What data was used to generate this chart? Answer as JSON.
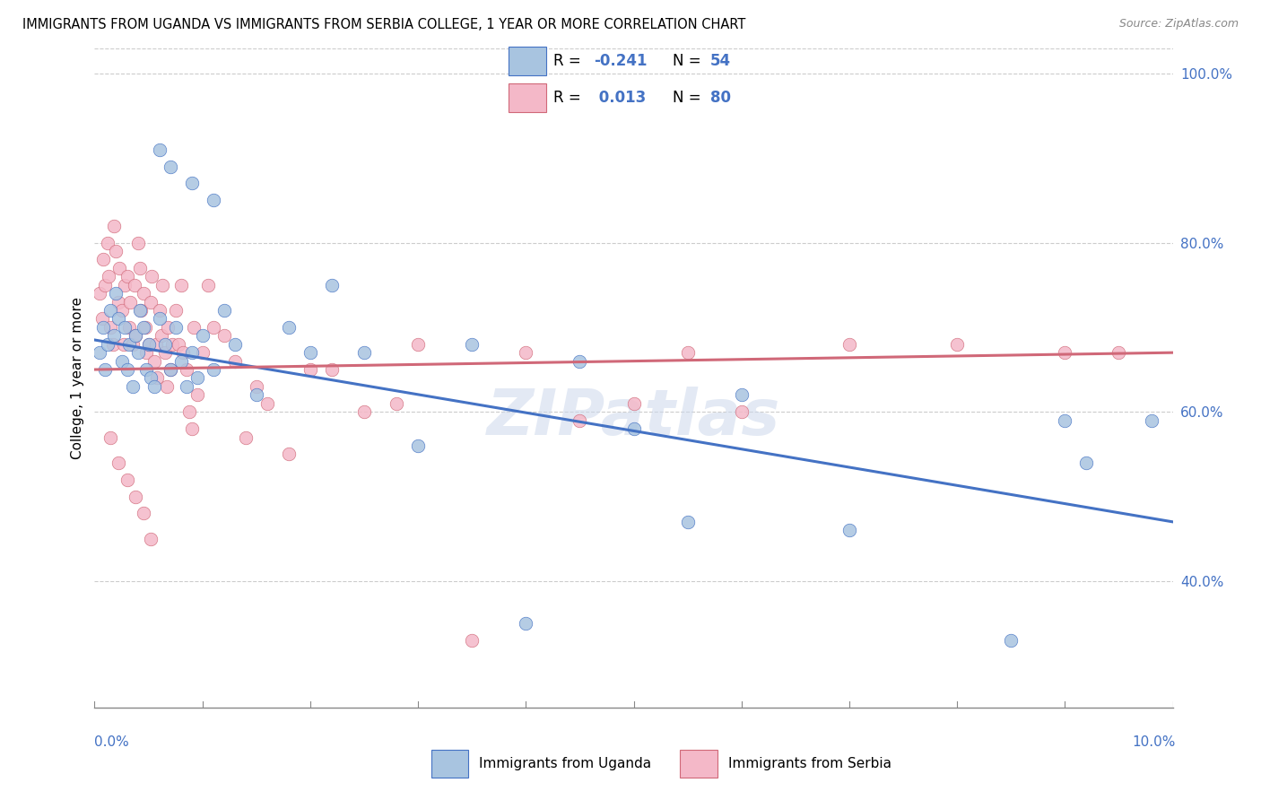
{
  "title": "IMMIGRANTS FROM UGANDA VS IMMIGRANTS FROM SERBIA COLLEGE, 1 YEAR OR MORE CORRELATION CHART",
  "source": "Source: ZipAtlas.com",
  "ylabel": "College, 1 year or more",
  "xlim": [
    0.0,
    10.0
  ],
  "ylim": [
    25.0,
    103.0
  ],
  "yticks": [
    40.0,
    60.0,
    80.0,
    100.0
  ],
  "ytick_labels": [
    "40.0%",
    "60.0%",
    "80.0%",
    "100.0%"
  ],
  "color_uganda_fill": "#a8c4e0",
  "color_uganda_edge": "#4472c4",
  "color_serbia_fill": "#f4b8c8",
  "color_serbia_edge": "#d06878",
  "color_uganda_line": "#4472c4",
  "color_serbia_line": "#d06878",
  "watermark": "ZIPatlas",
  "uganda_x": [
    0.05,
    0.08,
    0.1,
    0.12,
    0.15,
    0.18,
    0.2,
    0.22,
    0.25,
    0.28,
    0.3,
    0.32,
    0.35,
    0.38,
    0.4,
    0.42,
    0.45,
    0.48,
    0.5,
    0.52,
    0.55,
    0.6,
    0.65,
    0.7,
    0.75,
    0.8,
    0.85,
    0.9,
    0.95,
    1.0,
    1.1,
    1.2,
    1.3,
    1.5,
    1.8,
    2.0,
    2.2,
    2.5,
    3.0,
    3.5,
    4.0,
    4.5,
    5.0,
    5.5,
    6.0,
    7.0,
    8.5,
    9.0,
    9.2,
    9.8,
    0.6,
    0.7,
    0.9,
    1.1
  ],
  "uganda_y": [
    67,
    70,
    65,
    68,
    72,
    69,
    74,
    71,
    66,
    70,
    65,
    68,
    63,
    69,
    67,
    72,
    70,
    65,
    68,
    64,
    63,
    71,
    68,
    65,
    70,
    66,
    63,
    67,
    64,
    69,
    65,
    72,
    68,
    62,
    70,
    67,
    75,
    67,
    56,
    68,
    35,
    66,
    58,
    47,
    62,
    46,
    33,
    59,
    54,
    59,
    91,
    89,
    87,
    85
  ],
  "serbia_x": [
    0.05,
    0.07,
    0.08,
    0.1,
    0.12,
    0.13,
    0.15,
    0.17,
    0.18,
    0.2,
    0.22,
    0.23,
    0.25,
    0.27,
    0.28,
    0.3,
    0.32,
    0.33,
    0.35,
    0.37,
    0.38,
    0.4,
    0.42,
    0.43,
    0.45,
    0.47,
    0.48,
    0.5,
    0.52,
    0.53,
    0.55,
    0.57,
    0.58,
    0.6,
    0.62,
    0.63,
    0.65,
    0.67,
    0.68,
    0.7,
    0.72,
    0.75,
    0.78,
    0.8,
    0.82,
    0.85,
    0.88,
    0.9,
    0.92,
    0.95,
    1.0,
    1.05,
    1.1,
    1.2,
    1.3,
    1.4,
    1.5,
    1.6,
    1.8,
    2.0,
    2.2,
    2.5,
    2.8,
    3.0,
    3.5,
    4.0,
    4.5,
    5.0,
    5.5,
    6.0,
    7.0,
    8.0,
    9.0,
    9.5,
    0.15,
    0.22,
    0.3,
    0.38,
    0.45,
    0.52
  ],
  "serbia_y": [
    74,
    71,
    78,
    75,
    80,
    76,
    70,
    68,
    82,
    79,
    73,
    77,
    72,
    68,
    75,
    76,
    70,
    73,
    68,
    75,
    69,
    80,
    77,
    72,
    74,
    70,
    67,
    68,
    73,
    76,
    66,
    68,
    64,
    72,
    69,
    75,
    67,
    63,
    70,
    65,
    68,
    72,
    68,
    75,
    67,
    65,
    60,
    58,
    70,
    62,
    67,
    75,
    70,
    69,
    66,
    57,
    63,
    61,
    55,
    65,
    65,
    60,
    61,
    68,
    33,
    67,
    59,
    61,
    67,
    60,
    68,
    68,
    67,
    67,
    57,
    54,
    52,
    50,
    48,
    45
  ],
  "ug_line_x0": 0.0,
  "ug_line_y0": 68.5,
  "ug_line_x1": 10.0,
  "ug_line_y1": 47.0,
  "sr_line_x0": 0.0,
  "sr_line_y0": 65.0,
  "sr_line_x1": 10.0,
  "sr_line_y1": 67.0
}
